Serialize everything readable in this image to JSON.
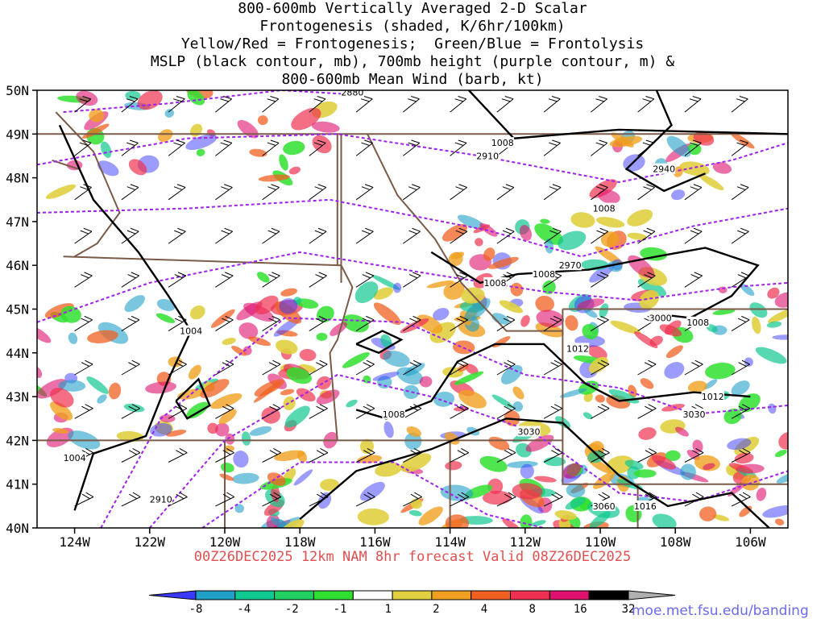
{
  "title_lines": [
    "800-600mb Vertically Averaged 2-D Scalar",
    "Frontogenesis (shaded, K/6hr/100km)",
    "Yellow/Red = Frontogenesis;  Green/Blue = Frontolysis",
    "MSLP (black contour, mb), 700mb height (purple contour, m) &",
    "800-600mb Mean Wind (barb, kt)"
  ],
  "subtitle": "00Z26DEC2025 12km NAM 8hr forecast Valid 08Z26DEC2025",
  "credit": "moe.met.fsu.edu/banding",
  "map": {
    "lon_range": [
      -125,
      -105
    ],
    "lat_range": [
      40,
      50
    ],
    "lat_labels": [
      "50N",
      "49N",
      "48N",
      "47N",
      "46N",
      "45N",
      "44N",
      "43N",
      "42N",
      "41N",
      "40N"
    ],
    "lon_labels": [
      "124W",
      "122W",
      "120W",
      "118W",
      "116W",
      "114W",
      "112W",
      "110W",
      "108W",
      "106W"
    ],
    "mslp_labels": [
      {
        "text": "1008",
        "lon": -112.6,
        "lat": 48.8
      },
      {
        "text": "1008",
        "lon": -109.9,
        "lat": 47.3
      },
      {
        "text": "1008",
        "lon": -112.8,
        "lat": 45.6
      },
      {
        "text": "1008",
        "lon": -111.5,
        "lat": 45.8
      },
      {
        "text": "1008",
        "lon": -107.4,
        "lat": 44.7
      },
      {
        "text": "1004",
        "lon": -120.9,
        "lat": 44.5
      },
      {
        "text": "1012",
        "lon": -110.6,
        "lat": 44.1
      },
      {
        "text": "1012",
        "lon": -107.0,
        "lat": 43.0
      },
      {
        "text": "1008",
        "lon": -115.5,
        "lat": 42.6
      },
      {
        "text": "1004",
        "lon": -124.0,
        "lat": 41.6
      },
      {
        "text": "1016",
        "lon": -108.8,
        "lat": 40.5
      }
    ],
    "height_labels": [
      {
        "text": "2880",
        "lon": -116.6,
        "lat": 49.95
      },
      {
        "text": "2910",
        "lon": -113.0,
        "lat": 48.5
      },
      {
        "text": "2940",
        "lon": -108.3,
        "lat": 48.2
      },
      {
        "text": "2970",
        "lon": -110.8,
        "lat": 46.0
      },
      {
        "text": "3000",
        "lon": -108.4,
        "lat": 44.8
      },
      {
        "text": "3030",
        "lon": -111.9,
        "lat": 42.2
      },
      {
        "text": "3030",
        "lon": -107.5,
        "lat": 42.6
      },
      {
        "text": "3060",
        "lon": -109.9,
        "lat": 40.5
      },
      {
        "text": "2910",
        "lon": -121.7,
        "lat": 40.65
      }
    ],
    "colorbar_labels": [
      "-8",
      "-4",
      "-2",
      "-1",
      "1",
      "2",
      "4",
      "8",
      "16",
      "32"
    ]
  },
  "colors": {
    "mslp_contour": "#000000",
    "height_contour": "#a020f0",
    "borders": "#7a5a48",
    "colorbar": [
      "#3a3aff",
      "#20a0c8",
      "#10c890",
      "#20d060",
      "#30e030",
      "#ffffff",
      "#e0d040",
      "#f0a020",
      "#f06020",
      "#f03050",
      "#e0106e",
      "#000000",
      "#b0b0b0"
    ]
  }
}
